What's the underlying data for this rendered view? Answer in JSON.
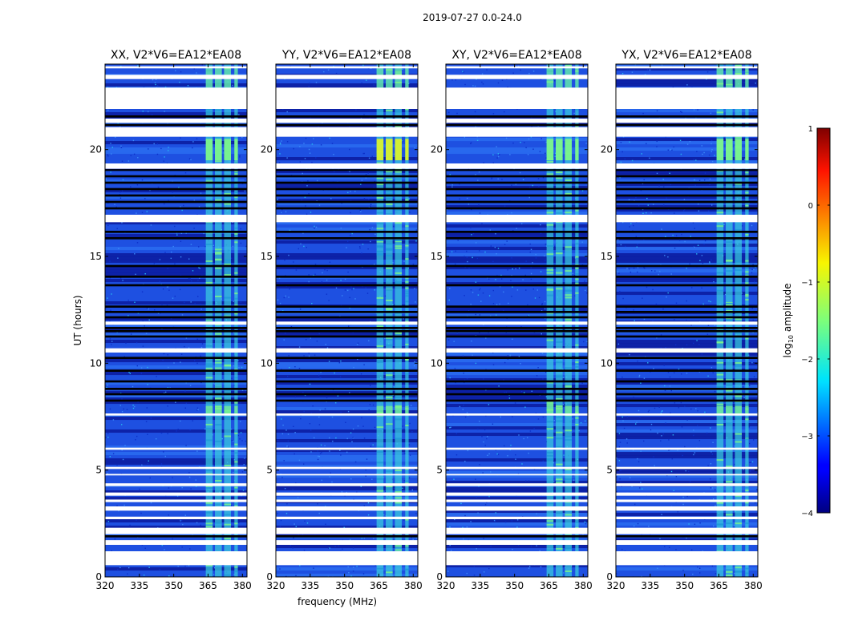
{
  "figure_title": "2019-07-27 0.0-24.0",
  "chart_data": [
    {
      "type": "heatmap",
      "title": "XX, V2*V6=EA12*EA08",
      "polarization": "XX",
      "xlabel": "",
      "ylabel": "UT (hours)",
      "xlim": [
        320,
        382
      ],
      "ylim": [
        0,
        24
      ],
      "xticks": [
        "320",
        "335",
        "350",
        "365",
        "380"
      ],
      "yticks": [
        "0",
        "5",
        "10",
        "15",
        "20"
      ]
    },
    {
      "type": "heatmap",
      "title": "YY, V2*V6=EA12*EA08",
      "polarization": "YY",
      "xlabel": "frequency (MHz)",
      "ylabel": "",
      "xlim": [
        320,
        382
      ],
      "ylim": [
        0,
        24
      ],
      "xticks": [
        "320",
        "335",
        "350",
        "365",
        "380"
      ],
      "yticks": [
        "0",
        "5",
        "10",
        "15",
        "20"
      ]
    },
    {
      "type": "heatmap",
      "title": "XY, V2*V6=EA12*EA08",
      "polarization": "XY",
      "xlabel": "",
      "ylabel": "",
      "xlim": [
        320,
        382
      ],
      "ylim": [
        0,
        24
      ],
      "xticks": [
        "320",
        "335",
        "350",
        "365",
        "380"
      ],
      "yticks": [
        "0",
        "5",
        "10",
        "15",
        "20"
      ]
    },
    {
      "type": "heatmap",
      "title": "YX, V2*V6=EA12*EA08",
      "polarization": "YX",
      "xlabel": "",
      "ylabel": "",
      "xlim": [
        320,
        382
      ],
      "ylim": [
        0,
        24
      ],
      "xticks": [
        "320",
        "335",
        "350",
        "365",
        "380"
      ],
      "yticks": [
        "0",
        "5",
        "10",
        "15",
        "20"
      ]
    }
  ],
  "colorbar": {
    "label_prefix": "log",
    "label_sub": "10",
    "label_suffix": " amplitude",
    "range": [
      -4,
      1
    ],
    "ticks": [
      "1",
      "0",
      "−1",
      "−2",
      "−3",
      "−4"
    ],
    "colormap": "jet"
  },
  "rfi_bands_mhz": [
    [
      364,
      367
    ],
    [
      368,
      371
    ],
    [
      372,
      375
    ],
    [
      376.5,
      378
    ]
  ],
  "flagged_ut_hours": [
    [
      0.55,
      1.2
    ],
    [
      1.5,
      1.72
    ],
    [
      2.0,
      2.3
    ],
    [
      2.7,
      2.82
    ],
    [
      3.1,
      3.3
    ],
    [
      3.5,
      3.62
    ],
    [
      3.8,
      3.95
    ],
    [
      4.25,
      4.38
    ],
    [
      4.75,
      4.82
    ],
    [
      5.05,
      5.15
    ],
    [
      5.95,
      6.05
    ],
    [
      7.55,
      7.65
    ],
    [
      10.5,
      10.7
    ],
    [
      11.8,
      11.95
    ],
    [
      16.6,
      16.95
    ],
    [
      19.1,
      19.35
    ],
    [
      20.6,
      21.05
    ],
    [
      21.25,
      21.45
    ],
    [
      21.9,
      22.9
    ],
    [
      23.3,
      23.5
    ],
    [
      23.8,
      23.9
    ]
  ],
  "bad_ut_hours": [
    [
      1.85,
      1.95
    ],
    [
      8.2,
      8.3
    ],
    [
      8.5,
      8.6
    ],
    [
      8.75,
      8.85
    ],
    [
      9.1,
      9.2
    ],
    [
      9.6,
      9.7
    ],
    [
      10.2,
      10.3
    ],
    [
      11.2,
      11.3
    ],
    [
      11.45,
      11.55
    ],
    [
      11.6,
      11.7
    ],
    [
      12.1,
      12.2
    ],
    [
      12.35,
      12.45
    ],
    [
      12.6,
      12.7
    ],
    [
      13.6,
      13.7
    ],
    [
      14.0,
      14.1
    ],
    [
      14.5,
      14.6
    ],
    [
      15.8,
      15.9
    ],
    [
      16.1,
      16.2
    ],
    [
      17.2,
      17.3
    ],
    [
      17.5,
      17.6
    ],
    [
      17.8,
      17.9
    ],
    [
      18.1,
      18.2
    ],
    [
      18.4,
      18.5
    ],
    [
      18.7,
      18.8
    ],
    [
      19.0,
      19.08
    ],
    [
      21.1,
      21.2
    ],
    [
      21.5,
      21.6
    ]
  ],
  "colors": {
    "background_deep": "#0a1a9e",
    "background_mid": "#1e50e0",
    "rfi_band": "#3ad0e0",
    "rfi_bright": "#7cf58a",
    "rfi_hot": "#d9f22c",
    "flag": "#000000",
    "gap": "#ffffff"
  }
}
